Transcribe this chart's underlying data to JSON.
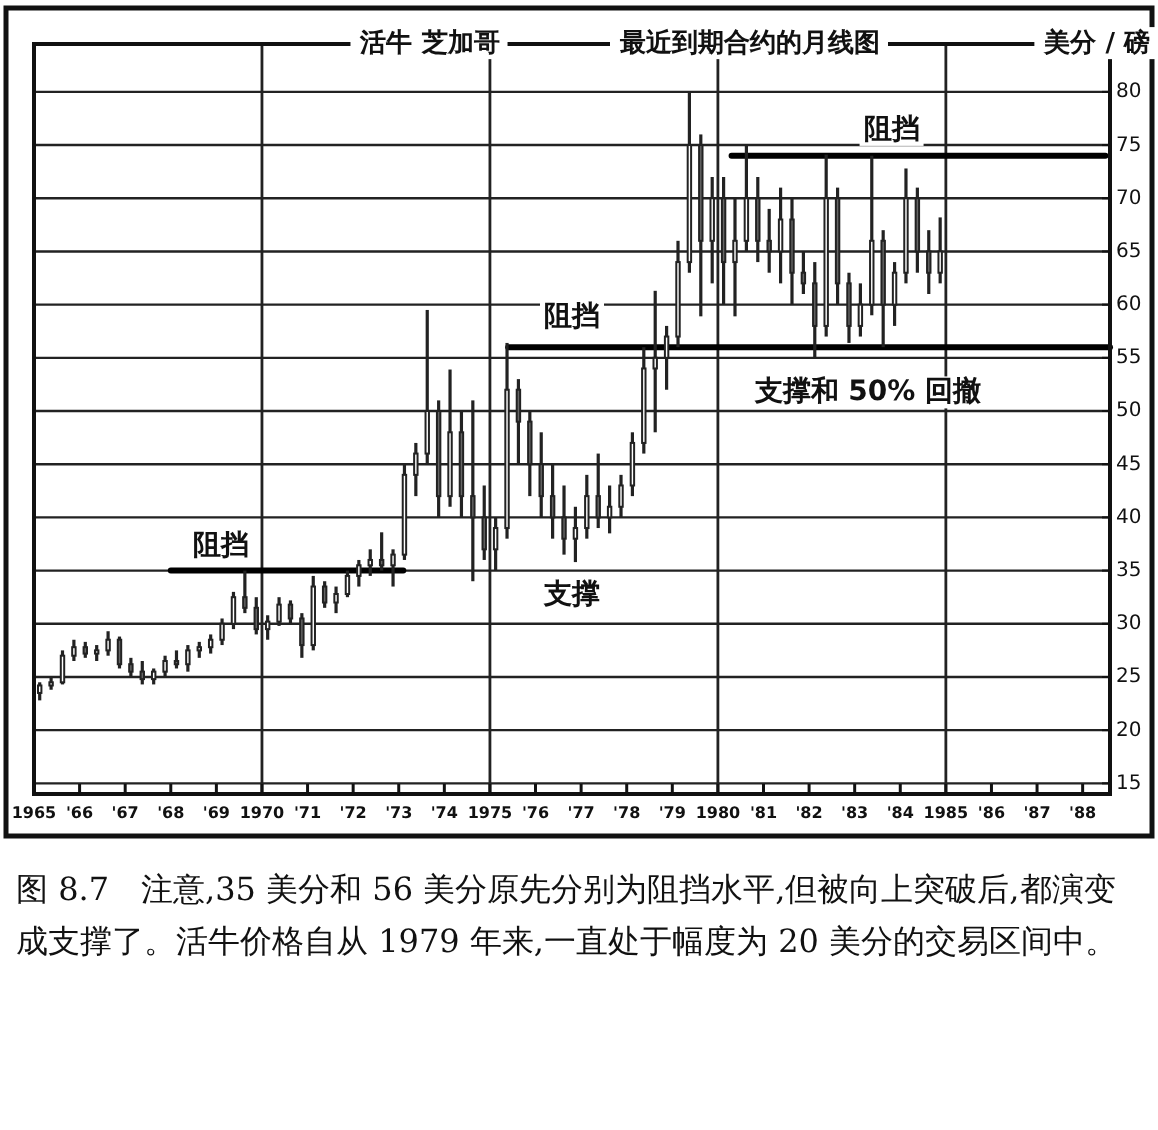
{
  "chart_data": {
    "type": "candlestick",
    "title": "活牛 芝加哥",
    "subtitle": "最近到期合约的月线图",
    "ylabel": "美分 / 磅",
    "color": "#222222",
    "x": [
      1965.125,
      1965.375,
      1965.625,
      1965.875,
      1966.125,
      1966.375,
      1966.625,
      1966.875,
      1967.125,
      1967.375,
      1967.625,
      1967.875,
      1968.125,
      1968.375,
      1968.625,
      1968.875,
      1969.125,
      1969.375,
      1969.625,
      1969.875,
      1970.125,
      1970.375,
      1970.625,
      1970.875,
      1971.125,
      1971.375,
      1971.625,
      1971.875,
      1972.125,
      1972.375,
      1972.625,
      1972.875,
      1973.125,
      1973.375,
      1973.625,
      1973.875,
      1974.125,
      1974.375,
      1974.625,
      1974.875,
      1975.125,
      1975.375,
      1975.625,
      1975.875,
      1976.125,
      1976.375,
      1976.625,
      1976.875,
      1977.125,
      1977.375,
      1977.625,
      1977.875,
      1978.125,
      1978.375,
      1978.625,
      1978.875,
      1979.125,
      1979.375,
      1979.625,
      1979.875,
      1980.125,
      1980.375,
      1980.625,
      1980.875,
      1981.125,
      1981.375,
      1981.625,
      1981.875,
      1982.125,
      1982.375,
      1982.625,
      1982.875,
      1983.125,
      1983.375,
      1983.625,
      1983.875,
      1984.125,
      1984.375,
      1984.625,
      1984.875
    ],
    "ohlc": [
      [
        23.5,
        24.5,
        22.8,
        24.2
      ],
      [
        24.2,
        25,
        23.8,
        24.5
      ],
      [
        24.5,
        27.5,
        24.3,
        27
      ],
      [
        27,
        28.5,
        26.5,
        27.8
      ],
      [
        27.8,
        28.3,
        26.8,
        27.2
      ],
      [
        27.2,
        28,
        26.5,
        27.5
      ],
      [
        27.5,
        29.3,
        27,
        28.5
      ],
      [
        28.5,
        28.8,
        25.8,
        26.2
      ],
      [
        26.2,
        26.8,
        25,
        25.5
      ],
      [
        25.5,
        26.5,
        24.3,
        24.8
      ],
      [
        24.8,
        25.8,
        24.3,
        25.5
      ],
      [
        25.5,
        27,
        25,
        26.5
      ],
      [
        26.5,
        27.5,
        25.8,
        26.2
      ],
      [
        26.2,
        28,
        25.5,
        27.5
      ],
      [
        27.5,
        28.3,
        26.8,
        27.8
      ],
      [
        27.8,
        29,
        27.2,
        28.5
      ],
      [
        28.5,
        30.5,
        28,
        30
      ],
      [
        30,
        33,
        29.5,
        32.5
      ],
      [
        32.5,
        35,
        31,
        31.5
      ],
      [
        31.5,
        32.5,
        29,
        29.5
      ],
      [
        29.5,
        30.8,
        28.5,
        30.2
      ],
      [
        30.2,
        32.5,
        29.8,
        31.8
      ],
      [
        31.8,
        32.2,
        30,
        30.5
      ],
      [
        30.5,
        31,
        26.8,
        28
      ],
      [
        28,
        34.5,
        27.5,
        33.5
      ],
      [
        33.5,
        34,
        31.5,
        32
      ],
      [
        32,
        33.5,
        31,
        32.8
      ],
      [
        32.8,
        35,
        32.5,
        34.5
      ],
      [
        34.5,
        36,
        33.5,
        35.5
      ],
      [
        35.5,
        37,
        34.5,
        36
      ],
      [
        36,
        38.6,
        35,
        35.5
      ],
      [
        35.5,
        37,
        33.5,
        36.5
      ],
      [
        36.5,
        45,
        36,
        44
      ],
      [
        44,
        47,
        42,
        46
      ],
      [
        46,
        59.5,
        45,
        50
      ],
      [
        50,
        51,
        40,
        42
      ],
      [
        42,
        53.9,
        41,
        48
      ],
      [
        48,
        50,
        40,
        42
      ],
      [
        42,
        51,
        34,
        40
      ],
      [
        40,
        43,
        36,
        37
      ],
      [
        37,
        40,
        35,
        39
      ],
      [
        39,
        56.4,
        38,
        52
      ],
      [
        52,
        53,
        45,
        49
      ],
      [
        49,
        50,
        42,
        45
      ],
      [
        45,
        48,
        40,
        42
      ],
      [
        42,
        45,
        38,
        40
      ],
      [
        40,
        43,
        36.5,
        38
      ],
      [
        38,
        41,
        35.8,
        39
      ],
      [
        39,
        44,
        38,
        42
      ],
      [
        42,
        46,
        39,
        40
      ],
      [
        40,
        43,
        38.5,
        41
      ],
      [
        41,
        44,
        40,
        43
      ],
      [
        43,
        48,
        42,
        47
      ],
      [
        47,
        56,
        46,
        54
      ],
      [
        54,
        61.3,
        48,
        55
      ],
      [
        55,
        58,
        52,
        57
      ],
      [
        57,
        66,
        56,
        64
      ],
      [
        64,
        80,
        63,
        75
      ],
      [
        75,
        76,
        58.9,
        66
      ],
      [
        66,
        72,
        62,
        70
      ],
      [
        70,
        72,
        60,
        64
      ],
      [
        64,
        70,
        58.9,
        66
      ],
      [
        66,
        75,
        65,
        70
      ],
      [
        70,
        72,
        64,
        66
      ],
      [
        66,
        69,
        63,
        65
      ],
      [
        65,
        71,
        62,
        68
      ],
      [
        68,
        70,
        60,
        63
      ],
      [
        63,
        65,
        61,
        62
      ],
      [
        62,
        64,
        55,
        58
      ],
      [
        58,
        74.1,
        57,
        70
      ],
      [
        70,
        71,
        60,
        62
      ],
      [
        62,
        63,
        56.4,
        58
      ],
      [
        58,
        62,
        57,
        60
      ],
      [
        60,
        74,
        59,
        66
      ],
      [
        66,
        67,
        56,
        60
      ],
      [
        60,
        64,
        58,
        63
      ],
      [
        63,
        72.8,
        62,
        70
      ],
      [
        70,
        71,
        63,
        65
      ],
      [
        65,
        67,
        61,
        63
      ],
      [
        63,
        68.2,
        62,
        65
      ]
    ],
    "xlim": [
      1965,
      1988.6
    ],
    "ylim": [
      14,
      84.5
    ],
    "xticks": [
      {
        "value": 1965,
        "label": "1965"
      },
      {
        "value": 1966,
        "label": "'66"
      },
      {
        "value": 1967,
        "label": "'67"
      },
      {
        "value": 1968,
        "label": "'68"
      },
      {
        "value": 1969,
        "label": "'69"
      },
      {
        "value": 1970,
        "label": "1970"
      },
      {
        "value": 1971,
        "label": "'71"
      },
      {
        "value": 1972,
        "label": "'72"
      },
      {
        "value": 1973,
        "label": "'73"
      },
      {
        "value": 1974,
        "label": "'74"
      },
      {
        "value": 1975,
        "label": "1975"
      },
      {
        "value": 1976,
        "label": "'76"
      },
      {
        "value": 1977,
        "label": "'77"
      },
      {
        "value": 1978,
        "label": "'78"
      },
      {
        "value": 1979,
        "label": "'79"
      },
      {
        "value": 1980,
        "label": "1980"
      },
      {
        "value": 1981,
        "label": "'81"
      },
      {
        "value": 1982,
        "label": "'82"
      },
      {
        "value": 1983,
        "label": "'83"
      },
      {
        "value": 1984,
        "label": "'84"
      },
      {
        "value": 1985,
        "label": "1985"
      },
      {
        "value": 1986,
        "label": "'86"
      },
      {
        "value": 1987,
        "label": "'87"
      },
      {
        "value": 1988,
        "label": "'88"
      }
    ],
    "yticks": [
      15,
      20,
      25,
      30,
      35,
      40,
      45,
      50,
      55,
      60,
      65,
      70,
      75,
      80
    ],
    "grid": "y",
    "ref_lines": [
      {
        "axis": "x",
        "value": 1970
      },
      {
        "axis": "x",
        "value": 1975
      },
      {
        "axis": "x",
        "value": 1980
      },
      {
        "axis": "x",
        "value": 1985
      }
    ],
    "series": [
      {
        "type": "line",
        "color": "#000000",
        "x": [
          1968,
          1973.1
        ],
        "values": [
          35,
          35
        ]
      },
      {
        "type": "line",
        "color": "#000000",
        "x": [
          1975.4,
          1988.6
        ],
        "values": [
          56,
          56
        ]
      },
      {
        "type": "line",
        "color": "#000000",
        "x": [
          1980.3,
          1988.5
        ],
        "values": [
          74,
          74
        ]
      }
    ],
    "annotations": [
      "阻挡",
      "支撑",
      "阻挡",
      "支撑和 50% 回撤",
      "阻挡",
      "图 8.7　注意,35 美分和 56 美分原先分别为阻挡水平,但被向上突破后,都演变成支撑了。活牛价格自从 1979 年来,一直处于幅度为 20 美分的交易区间中。"
    ]
  }
}
